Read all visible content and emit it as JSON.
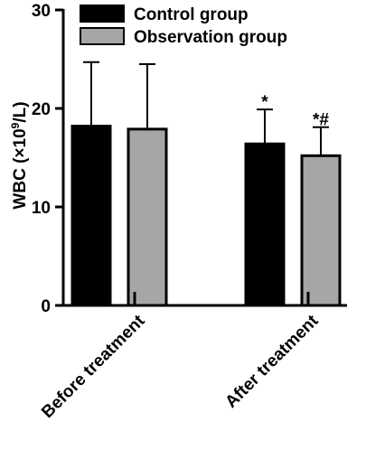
{
  "chart_data": {
    "type": "bar",
    "categories": [
      "Before treatment",
      "After treatment"
    ],
    "series": [
      {
        "name": "Control group",
        "color": "#000000",
        "values": [
          18.2,
          16.4
        ],
        "errors": [
          6.5,
          3.5
        ],
        "annotations": [
          "",
          "*"
        ]
      },
      {
        "name": "Observation group",
        "color": "#a6a6a6",
        "values": [
          17.9,
          15.2
        ],
        "errors": [
          6.6,
          2.9
        ],
        "annotations": [
          "",
          "*#"
        ]
      }
    ],
    "ylabel_prefix": "WBC (×10",
    "ylabel_sup": "9",
    "ylabel_suffix": "/L)",
    "ylim": [
      0,
      30
    ],
    "yticks": [
      0,
      10,
      20,
      30
    ],
    "legend_position": "top",
    "grid": false
  }
}
